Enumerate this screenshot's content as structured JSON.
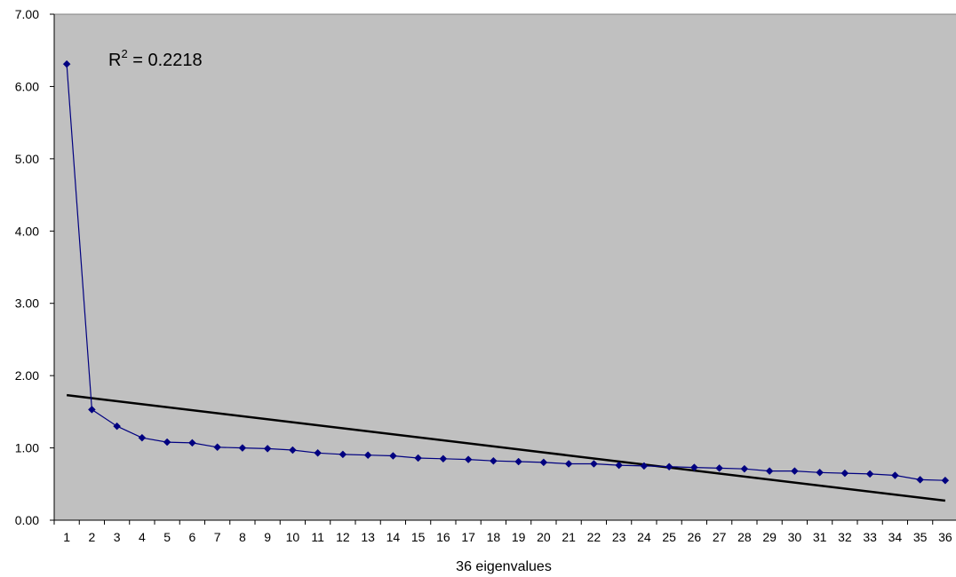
{
  "chart_data": {
    "type": "line",
    "title": "",
    "xlabel": "36 eigenvalues",
    "ylabel": "",
    "x": [
      1,
      2,
      3,
      4,
      5,
      6,
      7,
      8,
      9,
      10,
      11,
      12,
      13,
      14,
      15,
      16,
      17,
      18,
      19,
      20,
      21,
      22,
      23,
      24,
      25,
      26,
      27,
      28,
      29,
      30,
      31,
      32,
      33,
      34,
      35,
      36
    ],
    "series": [
      {
        "values": [
          6.31,
          1.53,
          1.3,
          1.14,
          1.08,
          1.07,
          1.01,
          1.0,
          0.99,
          0.97,
          0.93,
          0.91,
          0.9,
          0.89,
          0.86,
          0.85,
          0.84,
          0.82,
          0.81,
          0.8,
          0.78,
          0.78,
          0.76,
          0.75,
          0.74,
          0.73,
          0.72,
          0.71,
          0.68,
          0.68,
          0.66,
          0.65,
          0.64,
          0.62,
          0.56,
          0.55
        ],
        "color": "#000080",
        "marker": "diamond"
      }
    ],
    "trendline": {
      "type": "linear",
      "start": [
        1,
        1.73
      ],
      "end": [
        36,
        0.27
      ],
      "color": "#000000",
      "annotation": {
        "prefix": "R",
        "superscript": "2",
        "suffix": " = 0.2218"
      }
    },
    "ylim": [
      0,
      7
    ],
    "yticks": [
      0,
      1,
      2,
      3,
      4,
      5,
      6,
      7
    ],
    "ytick_labels": [
      "0.00",
      "1.00",
      "2.00",
      "3.00",
      "4.00",
      "5.00",
      "6.00",
      "7.00"
    ],
    "grid": false,
    "legend": "none",
    "plot_background": "#c0c0c0"
  }
}
